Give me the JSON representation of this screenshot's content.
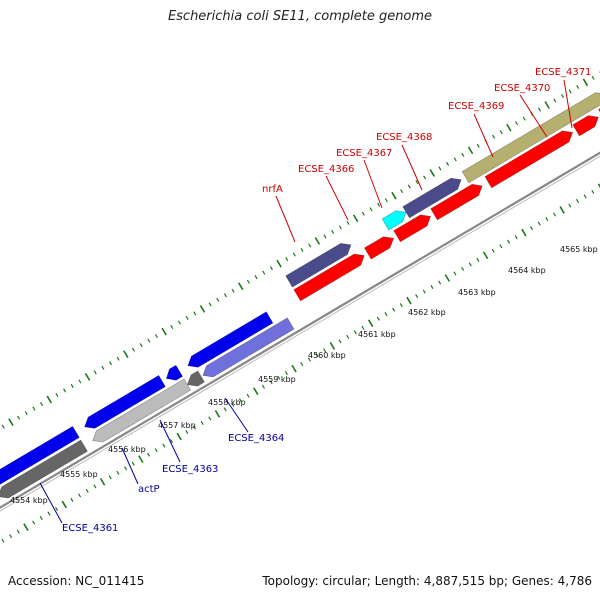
{
  "title": "Escherichia coli SE11, complete genome",
  "footer": {
    "accession": "Accession: NC_011415",
    "topology": "Topology: circular; Length: 4,887,515 bp; Genes: 4,786"
  },
  "kbp_labels": [
    "4554 kbp",
    "4555 kbp",
    "4556 kbp",
    "4557 kbp",
    "4558 kbp",
    "4559 kbp",
    "4560 kbp",
    "4561 kbp",
    "4562 kbp",
    "4563 kbp",
    "4564 kbp",
    "4565 kbp"
  ],
  "forward_gene_labels": [
    "nrfA",
    "ECSE_4366",
    "ECSE_4367",
    "ECSE_4368",
    "ECSE_4369",
    "ECSE_4370",
    "ECSE_4371"
  ],
  "reverse_gene_labels": [
    "ECSE_4361",
    "actP",
    "ECSE_4363",
    "ECSE_4364"
  ],
  "colors": {
    "forward_label": "#cc0000",
    "reverse_label": "#000099",
    "tick": "#1a7a1a",
    "red_gene": "#ff0000",
    "blue_gene": "#0000ee",
    "slate_gene": "#4b4b8c",
    "cyan_gene": "#00ffff",
    "olive_gene": "#b5b070",
    "gray_gene": "#bbbbbb",
    "darkgray_gene": "#666666",
    "lavender_gene": "#7070dd",
    "backbone": "#888888"
  }
}
